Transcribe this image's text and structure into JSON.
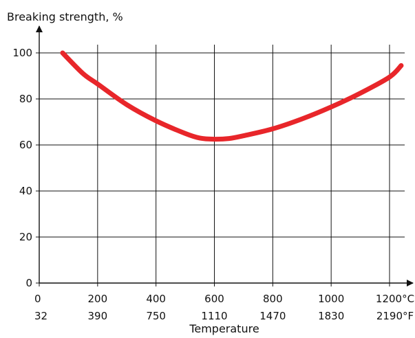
{
  "chart_data": {
    "type": "line",
    "title": "",
    "ylabel": "Breaking strength, %",
    "xlabel": "Temperature",
    "xlim": [
      0,
      1200
    ],
    "ylim": [
      0,
      100
    ],
    "grid": true,
    "x_ticks": [
      {
        "c": "0",
        "f": "32"
      },
      {
        "c": "200",
        "f": "390"
      },
      {
        "c": "400",
        "f": "750"
      },
      {
        "c": "600",
        "f": "1110"
      },
      {
        "c": "800",
        "f": "1470"
      },
      {
        "c": "1000",
        "f": "1830"
      },
      {
        "c": "1200°C",
        "f": "2190°F"
      }
    ],
    "y_ticks": [
      "0",
      "20",
      "40",
      "60",
      "80",
      "100"
    ],
    "series": [
      {
        "color": "#e8262a",
        "x": [
          80,
          150,
          200,
          300,
          400,
          500,
          550,
          600,
          650,
          700,
          800,
          900,
          1000,
          1100,
          1200,
          1240
        ],
        "y": [
          100,
          91,
          86.5,
          77.5,
          70.5,
          65,
          63,
          62.5,
          62.8,
          64,
          67,
          71.3,
          76.5,
          82.5,
          89.5,
          94.5
        ]
      }
    ],
    "colors": {
      "axis": "#111111",
      "grid": "#111111"
    }
  }
}
